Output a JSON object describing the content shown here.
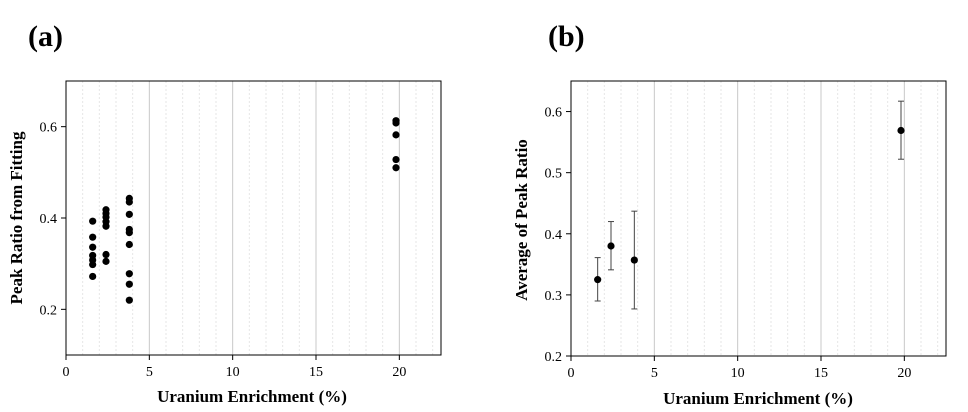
{
  "chart_data": [
    {
      "panel_label": "(a)",
      "type": "scatter",
      "xlabel": "Uranium Enrichment (%)",
      "ylabel": "Peak Ratio from Fitting",
      "xlim": [
        0,
        22.5
      ],
      "ylim": [
        0.1,
        0.7
      ],
      "xticks": [
        "0",
        "5",
        "10",
        "15",
        "20"
      ],
      "yticks": [
        "0.2",
        "0.4",
        "0.6"
      ],
      "grid": true,
      "series": [
        {
          "points": [
            {
              "x": 1.6,
              "y": 0.393
            },
            {
              "x": 1.6,
              "y": 0.358
            },
            {
              "x": 1.6,
              "y": 0.336
            },
            {
              "x": 1.6,
              "y": 0.318
            },
            {
              "x": 1.6,
              "y": 0.308
            },
            {
              "x": 1.6,
              "y": 0.298
            },
            {
              "x": 1.6,
              "y": 0.272
            },
            {
              "x": 2.4,
              "y": 0.418
            },
            {
              "x": 2.4,
              "y": 0.41
            },
            {
              "x": 2.4,
              "y": 0.402
            },
            {
              "x": 2.4,
              "y": 0.392
            },
            {
              "x": 2.4,
              "y": 0.382
            },
            {
              "x": 2.4,
              "y": 0.32
            },
            {
              "x": 2.4,
              "y": 0.305
            },
            {
              "x": 3.8,
              "y": 0.443
            },
            {
              "x": 3.8,
              "y": 0.435
            },
            {
              "x": 3.8,
              "y": 0.408
            },
            {
              "x": 3.8,
              "y": 0.375
            },
            {
              "x": 3.8,
              "y": 0.368
            },
            {
              "x": 3.8,
              "y": 0.342
            },
            {
              "x": 3.8,
              "y": 0.278
            },
            {
              "x": 3.8,
              "y": 0.255
            },
            {
              "x": 3.8,
              "y": 0.22
            },
            {
              "x": 19.8,
              "y": 0.613
            },
            {
              "x": 19.8,
              "y": 0.608
            },
            {
              "x": 19.8,
              "y": 0.582
            },
            {
              "x": 19.8,
              "y": 0.528
            },
            {
              "x": 19.8,
              "y": 0.51
            }
          ]
        }
      ]
    },
    {
      "panel_label": "(b)",
      "type": "scatter",
      "xlabel": "Uranium Enrichment (%)",
      "ylabel": "Average of Peak Ratio",
      "xlim": [
        0,
        22.5
      ],
      "ylim": [
        0.2,
        0.65
      ],
      "xticks": [
        "0",
        "5",
        "10",
        "15",
        "20"
      ],
      "yticks": [
        "0.2",
        "0.3",
        "0.4",
        "0.5",
        "0.6"
      ],
      "grid": true,
      "error_bars": true,
      "series": [
        {
          "points": [
            {
              "x": 1.6,
              "y": 0.325,
              "err_low": 0.29,
              "err_high": 0.361
            },
            {
              "x": 2.4,
              "y": 0.38,
              "err_low": 0.341,
              "err_high": 0.42
            },
            {
              "x": 3.8,
              "y": 0.357,
              "err_low": 0.277,
              "err_high": 0.437
            },
            {
              "x": 19.8,
              "y": 0.569,
              "err_low": 0.522,
              "err_high": 0.617
            }
          ]
        }
      ]
    }
  ]
}
